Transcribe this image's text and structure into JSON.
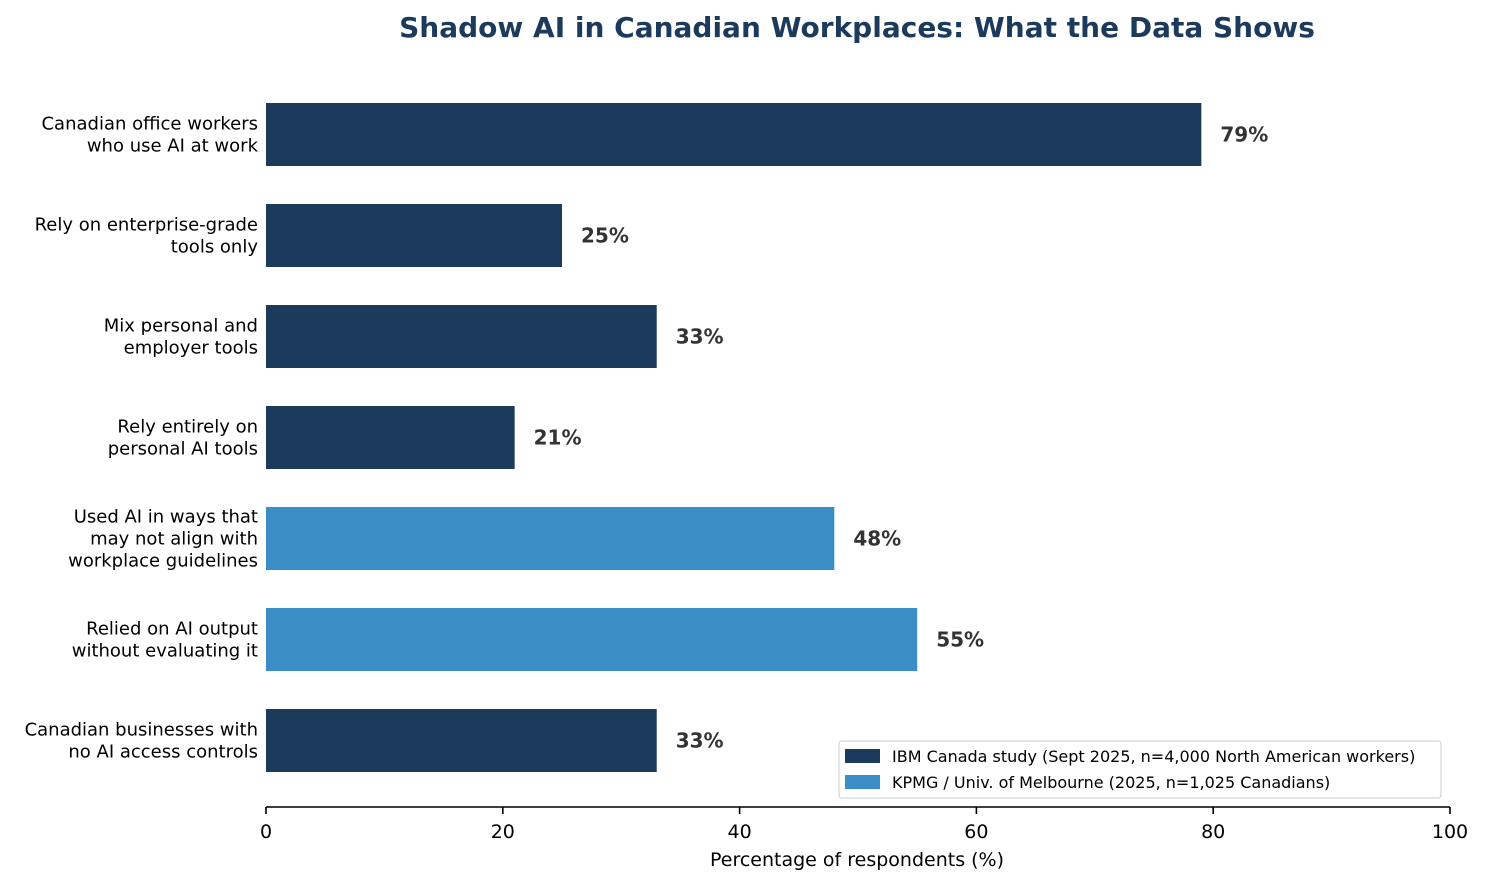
{
  "chart_data": {
    "type": "bar",
    "orientation": "horizontal",
    "title": "Shadow AI in Canadian Workplaces: What the Data Shows",
    "xlabel": "Percentage of respondents (%)",
    "ylabel": "",
    "xlim": [
      0,
      100
    ],
    "xticks": [
      0,
      20,
      40,
      60,
      80,
      100
    ],
    "grid": false,
    "legend_position": "bottom-right",
    "categories": [
      [
        "Canadian office workers",
        "who use AI at work"
      ],
      [
        "Rely on enterprise-grade",
        "tools only"
      ],
      [
        "Mix personal and",
        "employer tools"
      ],
      [
        "Rely entirely on",
        "personal AI tools"
      ],
      [
        "Used AI in ways that",
        "may not align with",
        "workplace guidelines"
      ],
      [
        "Relied on AI output",
        "without evaluating it"
      ],
      [
        "Canadian businesses with",
        "no AI access controls"
      ]
    ],
    "values": [
      79,
      25,
      33,
      21,
      48,
      55,
      33
    ],
    "value_labels": [
      "79%",
      "25%",
      "33%",
      "21%",
      "48%",
      "55%",
      "33%"
    ],
    "bar_series": [
      0,
      0,
      0,
      0,
      1,
      1,
      0
    ],
    "series": [
      {
        "name": "IBM Canada study (Sept 2025, n=4,000 North American workers)",
        "color": "#1b3a5c"
      },
      {
        "name": "KPMG / Univ. of Melbourne (2025, n=1,025 Canadians)",
        "color": "#3b8dc6"
      }
    ],
    "colors": {
      "title": "#1b3a5c",
      "value_label": "#333333",
      "axis": "#000000",
      "text": "#000000"
    }
  }
}
